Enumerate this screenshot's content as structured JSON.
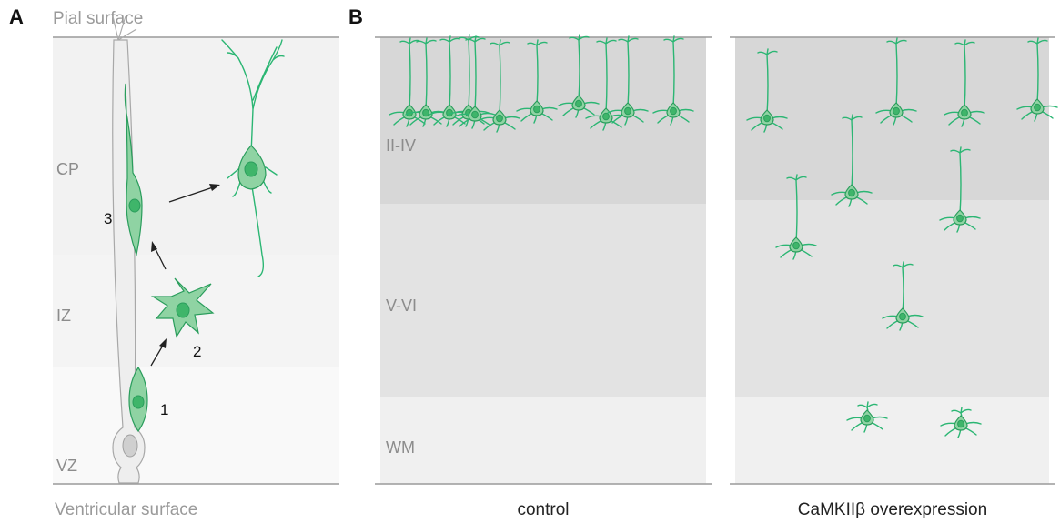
{
  "panel_a": {
    "letter": "A",
    "top_label": "Pial surface",
    "bottom_label": "Ventricular surface",
    "zones": [
      "CP",
      "IZ",
      "VZ"
    ],
    "steps": [
      "1",
      "2",
      "3"
    ]
  },
  "panel_b": {
    "letter": "B",
    "layers": [
      "II-IV",
      "V-VI",
      "WM"
    ],
    "captions": [
      "control",
      "CaMKIIβ overexpression"
    ]
  },
  "colors": {
    "neuron_fill": "#8fd3a3",
    "neuron_stroke": "#2a9d5c",
    "neurite": "#2bb673",
    "radial_glia_fill": "#eeeeee",
    "radial_glia_stroke": "#9e9e9e"
  }
}
